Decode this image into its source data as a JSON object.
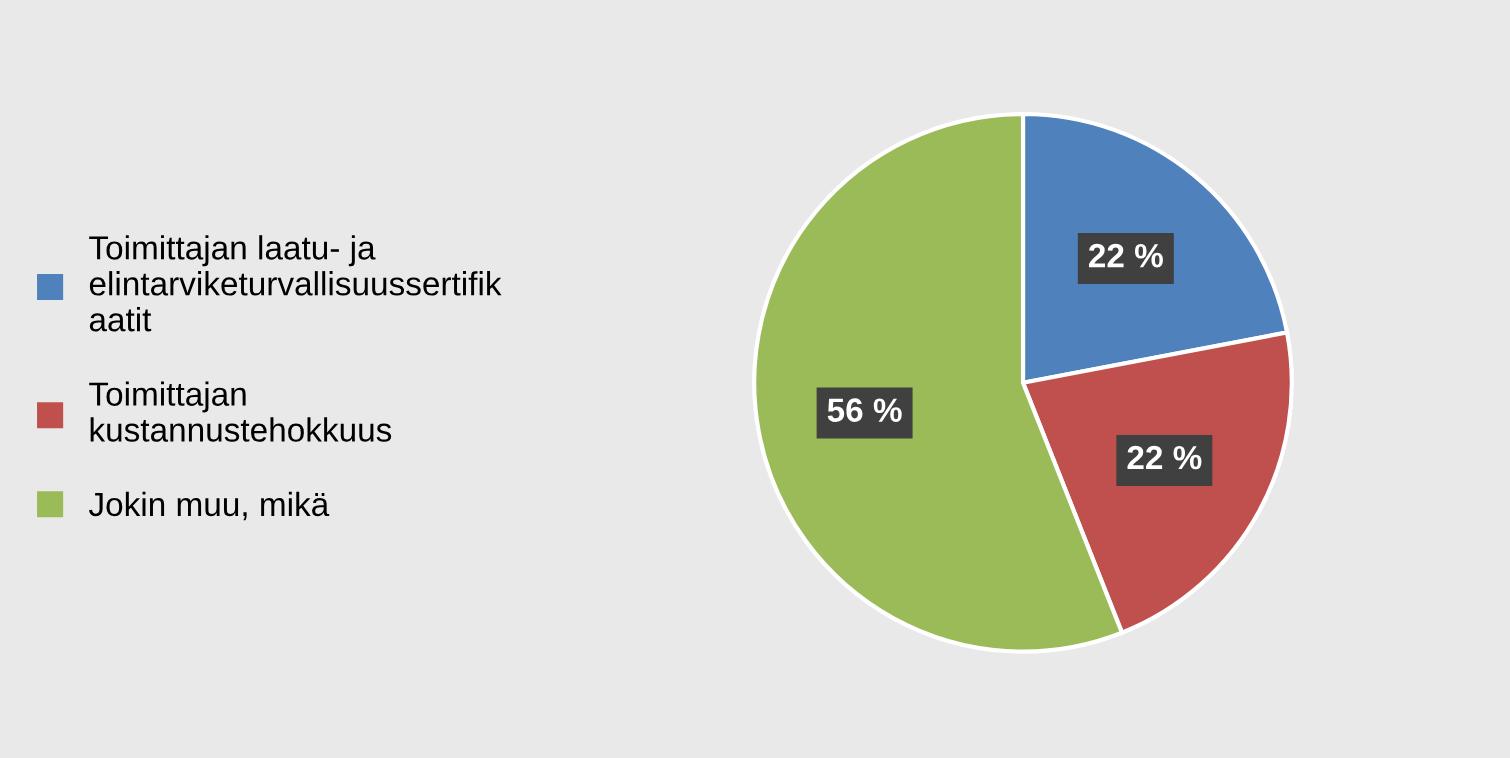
{
  "chart_data": {
    "type": "pie",
    "categories": [
      "Toimittajan laatu- ja\nelintarviketurvallisuussertifik\naatit",
      "Toimittajan\nkustannustehokkuus",
      "Jokin muu, mikä"
    ],
    "values": [
      22,
      22,
      56
    ],
    "colors": [
      "#4f81bd",
      "#c0504d",
      "#9bbb59"
    ],
    "value_labels": [
      "22 %",
      "22 %",
      "56 %"
    ],
    "legend": "left"
  }
}
